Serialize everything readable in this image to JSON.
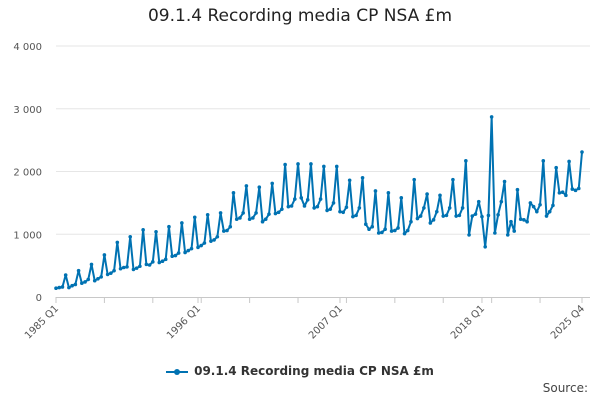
{
  "chart_data": {
    "type": "line",
    "title": "09.1.4 Recording media CP NSA £m",
    "xlabel": "",
    "ylabel": "",
    "ylim": [
      0,
      4000
    ],
    "y_ticks": [
      "0",
      "1 000",
      "2 000",
      "3 000",
      "4 000"
    ],
    "y_tick_values": [
      0,
      1000,
      2000,
      3000,
      4000
    ],
    "x_ticks": [
      "1985 Q1",
      "1996 Q1",
      "2007 Q1",
      "2018 Q1",
      "2025 Q4"
    ],
    "x_tick_years": [
      1985,
      1996,
      2007,
      2018,
      2025.75
    ],
    "grid": true,
    "legend_position": "bottom",
    "series": [
      {
        "name": "09.1.4 Recording media CP NSA £m",
        "color": "#0072b2",
        "start_year": 1985,
        "start_quarter": 1,
        "values": [
          140,
          150,
          160,
          350,
          150,
          180,
          200,
          420,
          220,
          240,
          280,
          520,
          260,
          290,
          320,
          670,
          360,
          380,
          420,
          870,
          450,
          470,
          480,
          960,
          440,
          460,
          490,
          1070,
          520,
          510,
          560,
          1040,
          550,
          570,
          600,
          1120,
          650,
          660,
          700,
          1180,
          710,
          740,
          770,
          1270,
          790,
          820,
          860,
          1310,
          890,
          910,
          960,
          1340,
          1050,
          1060,
          1120,
          1660,
          1240,
          1260,
          1340,
          1770,
          1240,
          1260,
          1340,
          1750,
          1200,
          1240,
          1320,
          1810,
          1330,
          1350,
          1400,
          2110,
          1440,
          1450,
          1560,
          2120,
          1580,
          1450,
          1550,
          2120,
          1420,
          1440,
          1560,
          2080,
          1380,
          1400,
          1500,
          2080,
          1360,
          1350,
          1430,
          1860,
          1280,
          1300,
          1420,
          1900,
          1160,
          1080,
          1120,
          1690,
          1020,
          1030,
          1080,
          1660,
          1050,
          1060,
          1100,
          1580,
          1010,
          1060,
          1200,
          1870,
          1250,
          1290,
          1420,
          1640,
          1180,
          1230,
          1360,
          1620,
          1290,
          1300,
          1420,
          1870,
          1290,
          1300,
          1420,
          2170,
          990,
          1290,
          1320,
          1520,
          1280,
          800,
          1300,
          2870,
          1020,
          1310,
          1520,
          1840,
          990,
          1200,
          1050,
          1710,
          1240,
          1230,
          1200,
          1500,
          1440,
          1360,
          1470,
          2170,
          1290,
          1360,
          1460,
          2060,
          1660,
          1670,
          1620,
          2160,
          1720,
          1700,
          1730,
          2310
        ]
      }
    ]
  },
  "legend": {
    "label": "09.1.4 Recording media CP NSA £m"
  },
  "footer": {
    "source_label": "Source:"
  }
}
